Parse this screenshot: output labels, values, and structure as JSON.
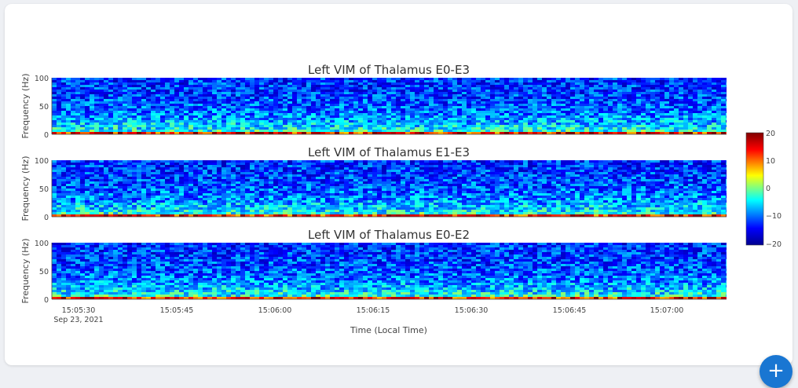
{
  "chart_data": [
    {
      "type": "heatmap",
      "title": "Left VIM of Thalamus E0-E3",
      "ylabel": "Frequency (Hz)",
      "yticks": [
        "0",
        "50",
        "100"
      ],
      "ylim": [
        0,
        100
      ]
    },
    {
      "type": "heatmap",
      "title": "Left VIM of Thalamus E1-E3",
      "ylabel": "Frequency (Hz)",
      "yticks": [
        "0",
        "50",
        "100"
      ],
      "ylim": [
        0,
        100
      ]
    },
    {
      "type": "heatmap",
      "title": "Left VIM of Thalamus E0-E2",
      "ylabel": "Frequency (Hz)",
      "yticks": [
        "0",
        "50",
        "100"
      ],
      "ylim": [
        0,
        100
      ]
    }
  ],
  "xaxis": {
    "label": "Time (Local Time)",
    "first_tick_date": "Sep 23, 2021",
    "ticks": [
      "15:05:30",
      "15:05:45",
      "15:06:00",
      "15:06:15",
      "15:06:30",
      "15:06:45",
      "15:07:00"
    ]
  },
  "colorbar": {
    "ticks": [
      "20",
      "10",
      "0",
      "−10",
      "−20"
    ],
    "range": [
      -20,
      20
    ],
    "colors": [
      "#00008f",
      "#0000ff",
      "#00ffff",
      "#ffff00",
      "#ff0000",
      "#800000"
    ]
  },
  "fab": {
    "label": "+"
  }
}
